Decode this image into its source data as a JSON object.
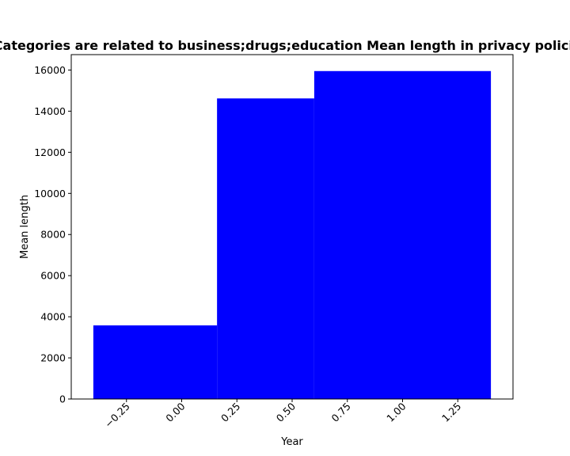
{
  "chart_data": {
    "type": "bar",
    "title": "Categories are related to business;drugs;education Mean length in privacy policies",
    "xlabel": "Year",
    "ylabel": "Mean length",
    "bar_color": "#0000ff",
    "bars": [
      {
        "x_start": -0.4,
        "x_end": 0.16,
        "value": 3580
      },
      {
        "x_start": 0.16,
        "x_end": 0.6,
        "value": 14620
      },
      {
        "x_start": 0.6,
        "x_end": 1.4,
        "value": 15950
      }
    ],
    "xlim": [
      -0.5,
      1.5
    ],
    "ylim": [
      0,
      16750
    ],
    "xticks": [
      -0.25,
      0.0,
      0.25,
      0.5,
      0.75,
      1.0,
      1.25
    ],
    "xtick_labels": [
      "−0.25",
      "0.00",
      "0.25",
      "0.50",
      "0.75",
      "1.00",
      "1.25"
    ],
    "yticks": [
      0,
      2000,
      4000,
      6000,
      8000,
      10000,
      12000,
      14000,
      16000
    ],
    "ytick_labels": [
      "0",
      "2000",
      "4000",
      "6000",
      "8000",
      "10000",
      "12000",
      "14000",
      "16000"
    ],
    "xtick_rotation": "45 degrees",
    "grid": false,
    "legend": "none"
  }
}
